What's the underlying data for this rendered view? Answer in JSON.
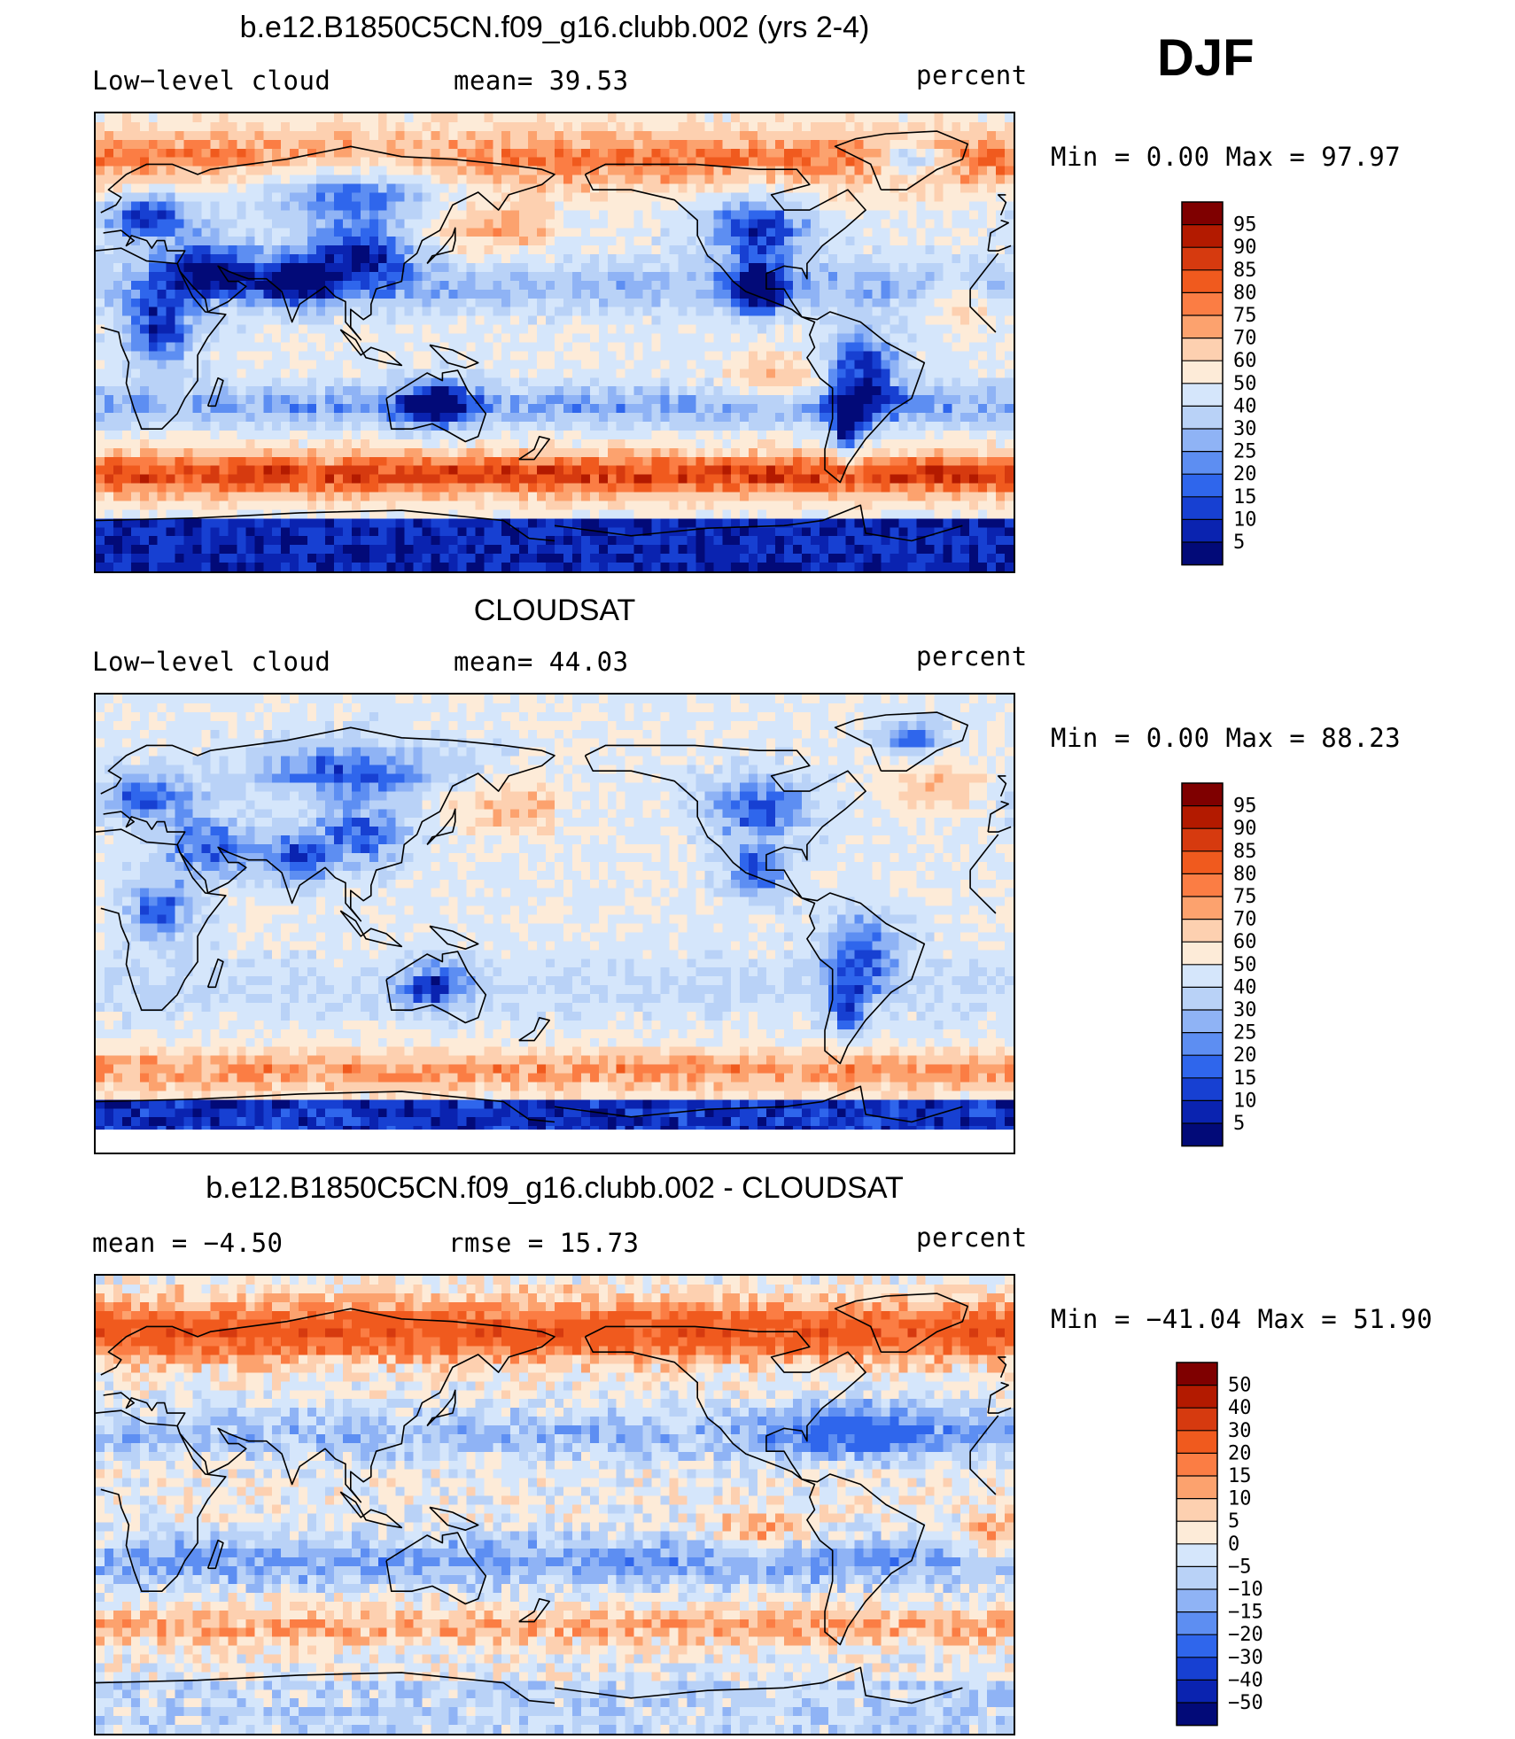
{
  "season": "DJF",
  "panels": [
    {
      "title": "b.e12.B1850C5CN.f09_g16.clubb.002 (yrs 2-4)",
      "left_label": "Low−level cloud",
      "stat1": "mean=  39.53",
      "units": "percent",
      "minmax": "Min =    0.00 Max =   97.97",
      "levels": [
        "95",
        "90",
        "85",
        "80",
        "75",
        "70",
        "60",
        "50",
        "40",
        "30",
        "25",
        "20",
        "15",
        "10",
        "5"
      ],
      "colors": [
        "#7f0000",
        "#b31a00",
        "#d63a0f",
        "#f05a1e",
        "#fb7d44",
        "#fca26e",
        "#fdd0b0",
        "#fdebd8",
        "#d5e6fb",
        "#b9d2f7",
        "#8fb3f5",
        "#5d8ef2",
        "#2f66ec",
        "#1740d2",
        "#0a23b0",
        "#020a78"
      ]
    },
    {
      "title": "CLOUDSAT",
      "left_label": "Low−level cloud",
      "stat1": "mean=  44.03",
      "units": "percent",
      "minmax": "Min =    0.00 Max =   88.23",
      "levels": [
        "95",
        "90",
        "85",
        "80",
        "75",
        "70",
        "60",
        "50",
        "40",
        "30",
        "25",
        "20",
        "15",
        "10",
        "5"
      ],
      "colors": [
        "#7f0000",
        "#b31a00",
        "#d63a0f",
        "#f05a1e",
        "#fb7d44",
        "#fca26e",
        "#fdd0b0",
        "#fdebd8",
        "#d5e6fb",
        "#b9d2f7",
        "#8fb3f5",
        "#5d8ef2",
        "#2f66ec",
        "#1740d2",
        "#0a23b0",
        "#020a78"
      ]
    },
    {
      "title": "b.e12.B1850C5CN.f09_g16.clubb.002 - CLOUDSAT",
      "left_label": "mean =   −4.50",
      "stat1": "rmse =   15.73",
      "units": "percent",
      "minmax": "Min = −41.04 Max =   51.90",
      "levels": [
        "50",
        "40",
        "30",
        "20",
        "15",
        "10",
        "5",
        "0",
        "−5",
        "−10",
        "−15",
        "−20",
        "−30",
        "−40",
        "−50"
      ],
      "colors": [
        "#7f0000",
        "#b31a00",
        "#d63a0f",
        "#f05a1e",
        "#fb7d44",
        "#fca26e",
        "#fdd0b0",
        "#fdebd8",
        "#d5e6fb",
        "#b9d2f7",
        "#8fb3f5",
        "#5d8ef2",
        "#2f66ec",
        "#1740d2",
        "#0a23b0",
        "#020a78"
      ]
    }
  ],
  "chart_data": {
    "type": "heatmap",
    "title": "DJF",
    "series": [
      {
        "name": "b.e12.B1850C5CN.f09_g16.clubb.002 (yrs 2-4)",
        "variable": "Low-level cloud",
        "units": "percent",
        "mean": 39.53,
        "min": 0.0,
        "max": 97.97
      },
      {
        "name": "CLOUDSAT",
        "variable": "Low-level cloud",
        "units": "percent",
        "mean": 44.03,
        "min": 0.0,
        "max": 88.23
      },
      {
        "name": "b.e12.B1850C5CN.f09_g16.clubb.002 - CLOUDSAT",
        "units": "percent",
        "mean": -4.5,
        "rmse": 15.73,
        "min": -41.04,
        "max": 51.9
      }
    ],
    "contour_levels": [
      [
        95,
        90,
        85,
        80,
        75,
        70,
        60,
        50,
        40,
        30,
        25,
        20,
        15,
        10,
        5
      ],
      [
        95,
        90,
        85,
        80,
        75,
        70,
        60,
        50,
        40,
        30,
        25,
        20,
        15,
        10,
        5
      ],
      [
        50,
        40,
        30,
        20,
        15,
        10,
        5,
        0,
        -5,
        -10,
        -15,
        -20,
        -30,
        -40,
        -50
      ]
    ]
  }
}
